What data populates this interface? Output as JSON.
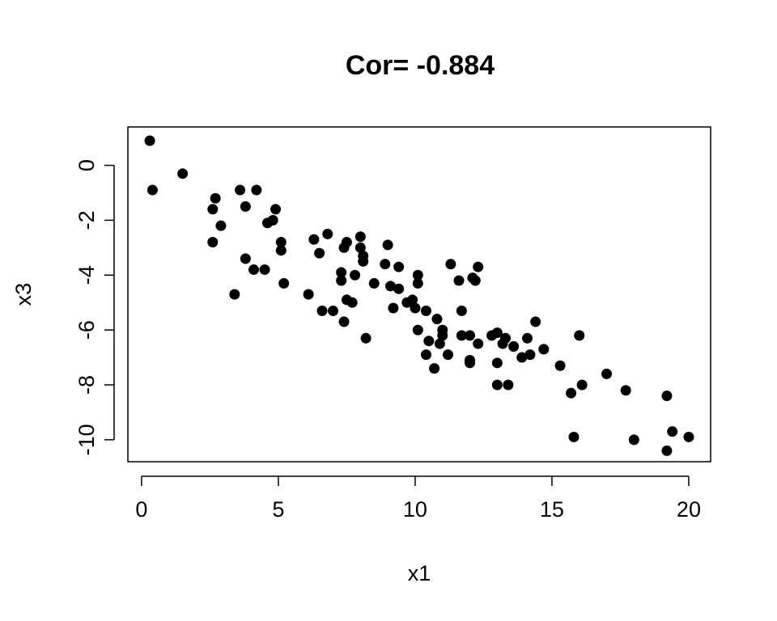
{
  "chart_data": {
    "type": "scatter",
    "title": "Cor= -0.884",
    "xlabel": "x1",
    "ylabel": "x3",
    "xlim": [
      -0.5,
      20.8
    ],
    "ylim": [
      -10.8,
      1.4
    ],
    "xticks": [
      0,
      5,
      10,
      15,
      20
    ],
    "xtick_labels": [
      "0",
      "5",
      "10",
      "15",
      "20"
    ],
    "yticks": [
      0,
      -2,
      -4,
      -6,
      -8,
      -10
    ],
    "ytick_labels": [
      "0",
      "-2",
      "-4",
      "-6",
      "-8",
      "-10"
    ],
    "grid": false,
    "point_color": "#000000",
    "points": [
      [
        0.3,
        0.9
      ],
      [
        0.4,
        -0.9
      ],
      [
        1.5,
        -0.3
      ],
      [
        2.6,
        -1.6
      ],
      [
        2.7,
        -1.2
      ],
      [
        2.6,
        -2.8
      ],
      [
        2.9,
        -2.2
      ],
      [
        3.4,
        -4.7
      ],
      [
        3.6,
        -0.9
      ],
      [
        3.8,
        -1.5
      ],
      [
        3.8,
        -3.4
      ],
      [
        4.1,
        -3.8
      ],
      [
        4.2,
        -0.9
      ],
      [
        4.5,
        -3.8
      ],
      [
        4.6,
        -2.1
      ],
      [
        4.8,
        -2.0
      ],
      [
        4.9,
        -1.6
      ],
      [
        5.1,
        -2.8
      ],
      [
        5.1,
        -3.1
      ],
      [
        5.2,
        -4.3
      ],
      [
        6.1,
        -4.7
      ],
      [
        6.3,
        -2.7
      ],
      [
        6.5,
        -3.2
      ],
      [
        6.6,
        -5.3
      ],
      [
        6.8,
        -2.5
      ],
      [
        7.0,
        -5.3
      ],
      [
        7.3,
        -3.9
      ],
      [
        7.3,
        -4.2
      ],
      [
        7.4,
        -5.7
      ],
      [
        7.4,
        -3.0
      ],
      [
        7.5,
        -2.8
      ],
      [
        7.5,
        -4.9
      ],
      [
        7.7,
        -5.0
      ],
      [
        7.8,
        -4.0
      ],
      [
        8.0,
        -2.6
      ],
      [
        8.0,
        -3.0
      ],
      [
        8.1,
        -3.3
      ],
      [
        8.1,
        -3.5
      ],
      [
        8.2,
        -6.3
      ],
      [
        8.5,
        -4.3
      ],
      [
        8.9,
        -3.6
      ],
      [
        9.0,
        -2.9
      ],
      [
        9.1,
        -4.4
      ],
      [
        9.2,
        -5.2
      ],
      [
        9.4,
        -3.7
      ],
      [
        9.4,
        -4.5
      ],
      [
        9.7,
        -5.0
      ],
      [
        9.9,
        -4.9
      ],
      [
        10.0,
        -5.2
      ],
      [
        10.1,
        -4.0
      ],
      [
        10.1,
        -4.3
      ],
      [
        10.1,
        -6.0
      ],
      [
        10.4,
        -5.3
      ],
      [
        10.4,
        -6.9
      ],
      [
        10.5,
        -6.4
      ],
      [
        10.7,
        -7.4
      ],
      [
        10.8,
        -5.6
      ],
      [
        10.9,
        -6.5
      ],
      [
        11.0,
        -6.0
      ],
      [
        11.0,
        -6.2
      ],
      [
        11.2,
        -6.9
      ],
      [
        11.3,
        -3.6
      ],
      [
        11.6,
        -4.2
      ],
      [
        11.7,
        -6.2
      ],
      [
        11.7,
        -5.3
      ],
      [
        12.0,
        -7.1
      ],
      [
        12.0,
        -7.2
      ],
      [
        12.1,
        -4.1
      ],
      [
        12.0,
        -6.2
      ],
      [
        12.2,
        -4.2
      ],
      [
        12.3,
        -6.5
      ],
      [
        12.3,
        -3.7
      ],
      [
        12.8,
        -6.2
      ],
      [
        13.0,
        -6.1
      ],
      [
        13.0,
        -7.2
      ],
      [
        13.0,
        -8.0
      ],
      [
        13.2,
        -6.5
      ],
      [
        13.3,
        -6.3
      ],
      [
        13.4,
        -8.0
      ],
      [
        13.6,
        -6.6
      ],
      [
        13.9,
        -7.0
      ],
      [
        14.1,
        -6.3
      ],
      [
        14.2,
        -6.9
      ],
      [
        14.4,
        -5.7
      ],
      [
        14.7,
        -6.7
      ],
      [
        15.3,
        -7.3
      ],
      [
        15.7,
        -8.3
      ],
      [
        15.8,
        -9.9
      ],
      [
        16.0,
        -6.2
      ],
      [
        16.1,
        -8.0
      ],
      [
        17.0,
        -7.6
      ],
      [
        17.7,
        -8.2
      ],
      [
        18.0,
        -10.0
      ],
      [
        19.2,
        -8.4
      ],
      [
        19.2,
        -10.4
      ],
      [
        19.4,
        -9.7
      ],
      [
        20.0,
        -9.9
      ]
    ]
  }
}
